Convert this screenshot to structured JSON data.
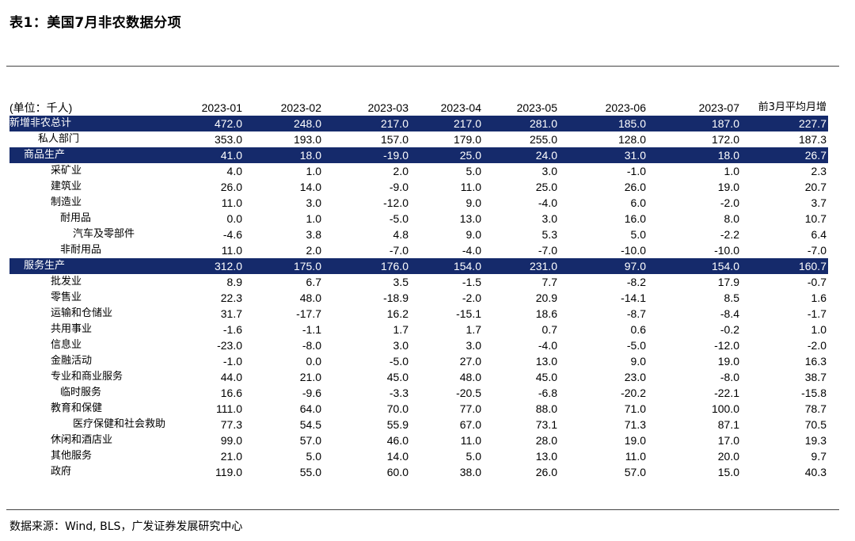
{
  "title": "表1：美国7月非农数据分项",
  "source": "数据来源：Wind, BLS，广发证券发展研究中心",
  "table": {
    "unit_label": "(单位：千人)",
    "columns": [
      "2023-01",
      "2023-02",
      "2023-03",
      "2023-04",
      "2023-05",
      "2023-06",
      "2023-07",
      "前3月平均月增"
    ],
    "rows": [
      {
        "label": "新增非农总计",
        "values": [
          "472.0",
          "248.0",
          "217.0",
          "217.0",
          "281.0",
          "185.0",
          "187.0",
          "227.7"
        ]
      },
      {
        "label": "私人部门",
        "values": [
          "353.0",
          "193.0",
          "157.0",
          "179.0",
          "255.0",
          "128.0",
          "172.0",
          "187.3"
        ]
      },
      {
        "label": "商品生产",
        "values": [
          "41.0",
          "18.0",
          "-19.0",
          "25.0",
          "24.0",
          "31.0",
          "18.0",
          "26.7"
        ]
      },
      {
        "label": "采矿业",
        "values": [
          "4.0",
          "1.0",
          "2.0",
          "5.0",
          "3.0",
          "-1.0",
          "1.0",
          "2.3"
        ]
      },
      {
        "label": "建筑业",
        "values": [
          "26.0",
          "14.0",
          "-9.0",
          "11.0",
          "25.0",
          "26.0",
          "19.0",
          "20.7"
        ]
      },
      {
        "label": "制造业",
        "values": [
          "11.0",
          "3.0",
          "-12.0",
          "9.0",
          "-4.0",
          "6.0",
          "-2.0",
          "3.7"
        ]
      },
      {
        "label": "耐用品",
        "values": [
          "0.0",
          "1.0",
          "-5.0",
          "13.0",
          "3.0",
          "16.0",
          "8.0",
          "10.7"
        ]
      },
      {
        "label": "汽车及零部件",
        "values": [
          "-4.6",
          "3.8",
          "4.8",
          "9.0",
          "5.3",
          "5.0",
          "-2.2",
          "6.4"
        ]
      },
      {
        "label": "非耐用品",
        "values": [
          "11.0",
          "2.0",
          "-7.0",
          "-4.0",
          "-7.0",
          "-10.0",
          "-10.0",
          "-7.0"
        ]
      },
      {
        "label": "服务生产",
        "values": [
          "312.0",
          "175.0",
          "176.0",
          "154.0",
          "231.0",
          "97.0",
          "154.0",
          "160.7"
        ]
      },
      {
        "label": "批发业",
        "values": [
          "8.9",
          "6.7",
          "3.5",
          "-1.5",
          "7.7",
          "-8.2",
          "17.9",
          "-0.7"
        ]
      },
      {
        "label": "零售业",
        "values": [
          "22.3",
          "48.0",
          "-18.9",
          "-2.0",
          "20.9",
          "-14.1",
          "8.5",
          "1.6"
        ]
      },
      {
        "label": "运输和仓储业",
        "values": [
          "31.7",
          "-17.7",
          "16.2",
          "-15.1",
          "18.6",
          "-8.7",
          "-8.4",
          "-1.7"
        ]
      },
      {
        "label": "共用事业",
        "values": [
          "-1.6",
          "-1.1",
          "1.7",
          "1.7",
          "0.7",
          "0.6",
          "-0.2",
          "1.0"
        ]
      },
      {
        "label": "信息业",
        "values": [
          "-23.0",
          "-8.0",
          "3.0",
          "3.0",
          "-4.0",
          "-5.0",
          "-12.0",
          "-2.0"
        ]
      },
      {
        "label": "金融活动",
        "values": [
          "-1.0",
          "0.0",
          "-5.0",
          "27.0",
          "13.0",
          "9.0",
          "19.0",
          "16.3"
        ]
      },
      {
        "label": "专业和商业服务",
        "values": [
          "44.0",
          "21.0",
          "45.0",
          "48.0",
          "45.0",
          "23.0",
          "-8.0",
          "38.7"
        ]
      },
      {
        "label": "临时服务",
        "values": [
          "16.6",
          "-9.6",
          "-3.3",
          "-20.5",
          "-6.8",
          "-20.2",
          "-22.1",
          "-15.8"
        ]
      },
      {
        "label": "教育和保健",
        "values": [
          "111.0",
          "64.0",
          "70.0",
          "77.0",
          "88.0",
          "71.0",
          "100.0",
          "78.7"
        ]
      },
      {
        "label": "医疗保健和社会救助",
        "values": [
          "77.3",
          "54.5",
          "55.9",
          "67.0",
          "73.1",
          "71.3",
          "87.1",
          "70.5"
        ]
      },
      {
        "label": "休闲和酒店业",
        "values": [
          "99.0",
          "57.0",
          "46.0",
          "11.0",
          "28.0",
          "19.0",
          "17.0",
          "19.3"
        ]
      },
      {
        "label": "其他服务",
        "values": [
          "21.0",
          "5.0",
          "14.0",
          "5.0",
          "13.0",
          "11.0",
          "20.0",
          "9.7"
        ]
      },
      {
        "label": "政府",
        "values": [
          "119.0",
          "55.0",
          "60.0",
          "38.0",
          "26.0",
          "57.0",
          "15.0",
          "40.3"
        ]
      }
    ]
  }
}
